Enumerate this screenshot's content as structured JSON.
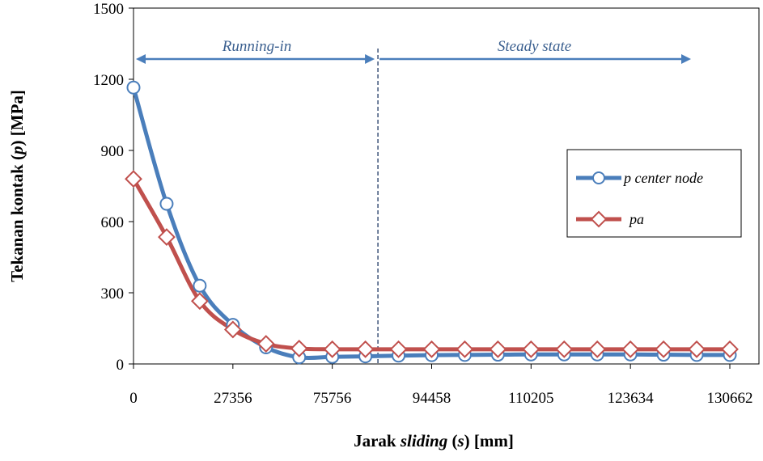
{
  "chart_data": {
    "type": "line",
    "title": "",
    "xlabel_parts": [
      "Jarak ",
      "sliding",
      " (",
      "s",
      ") [mm]"
    ],
    "ylabel_parts": [
      "Tekanan kontak (",
      "p",
      ") [MPa]"
    ],
    "ylim": [
      0,
      1500
    ],
    "yticks": [
      "0",
      "300",
      "600",
      "900",
      "1200",
      "1500"
    ],
    "ytick_values": [
      0,
      300,
      600,
      900,
      1200,
      1500
    ],
    "xticks": [
      "0",
      "27356",
      "75756",
      "94458",
      "110205",
      "123634",
      "130662"
    ],
    "x_points": 19,
    "xtick_point_index": [
      0,
      3,
      6,
      9,
      12,
      15,
      18
    ],
    "grid": false,
    "legend_position": "right",
    "series": [
      {
        "name": "p center node",
        "color": "#4a7ebb",
        "marker": "circle",
        "values": [
          1165,
          675,
          330,
          165,
          70,
          28,
          30,
          32,
          35,
          37,
          38,
          39,
          40,
          40,
          40,
          40,
          39,
          38,
          38
        ]
      },
      {
        "name": "pa",
        "color": "#c0504d",
        "marker": "diamond",
        "values": [
          780,
          535,
          265,
          145,
          85,
          65,
          62,
          62,
          62,
          62,
          62,
          62,
          62,
          62,
          62,
          62,
          62,
          62,
          62
        ]
      }
    ],
    "annotations": [
      {
        "text": "Running-in"
      },
      {
        "text": "Steady state"
      }
    ],
    "phase_boundary_after_index": 7
  }
}
